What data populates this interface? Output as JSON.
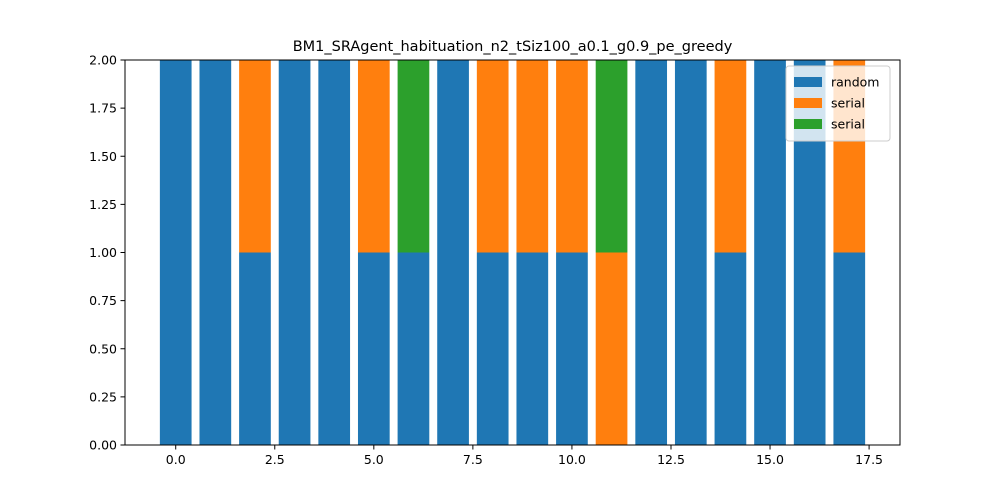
{
  "chart_data": {
    "type": "bar",
    "stacked": true,
    "title": "BM1_SRAgent_habituation_n2_tSiz100_a0.1_g0.9_pe_greedy",
    "xlabel": "",
    "ylabel": "",
    "x": [
      0,
      1,
      2,
      3,
      4,
      5,
      6,
      7,
      8,
      9,
      10,
      11,
      12,
      13,
      14,
      15,
      16,
      17
    ],
    "xlim": [
      -1.28,
      18.28
    ],
    "ylim": [
      0,
      2
    ],
    "xticks": [
      "0.0",
      "2.5",
      "5.0",
      "7.5",
      "10.0",
      "12.5",
      "15.0",
      "17.5"
    ],
    "xtick_values": [
      0,
      2.5,
      5,
      7.5,
      10,
      12.5,
      15,
      17.5
    ],
    "yticks": [
      "0.00",
      "0.25",
      "0.50",
      "0.75",
      "1.00",
      "1.25",
      "1.50",
      "1.75",
      "2.00"
    ],
    "ytick_values": [
      0,
      0.25,
      0.5,
      0.75,
      1,
      1.25,
      1.5,
      1.75,
      2
    ],
    "grid": false,
    "legend_position": "top-right",
    "bars": [
      {
        "x": 0,
        "segments": [
          {
            "series": 0,
            "value": 2
          }
        ]
      },
      {
        "x": 1,
        "segments": [
          {
            "series": 0,
            "value": 2
          }
        ]
      },
      {
        "x": 2,
        "segments": [
          {
            "series": 0,
            "value": 1
          },
          {
            "series": 1,
            "value": 1
          }
        ]
      },
      {
        "x": 3,
        "segments": [
          {
            "series": 0,
            "value": 2
          }
        ]
      },
      {
        "x": 4,
        "segments": [
          {
            "series": 0,
            "value": 2
          }
        ]
      },
      {
        "x": 5,
        "segments": [
          {
            "series": 0,
            "value": 1
          },
          {
            "series": 1,
            "value": 1
          }
        ]
      },
      {
        "x": 6,
        "segments": [
          {
            "series": 0,
            "value": 1
          },
          {
            "series": 2,
            "value": 1
          }
        ]
      },
      {
        "x": 7,
        "segments": [
          {
            "series": 0,
            "value": 2
          }
        ]
      },
      {
        "x": 8,
        "segments": [
          {
            "series": 0,
            "value": 1
          },
          {
            "series": 1,
            "value": 1
          }
        ]
      },
      {
        "x": 9,
        "segments": [
          {
            "series": 0,
            "value": 1
          },
          {
            "series": 1,
            "value": 1
          }
        ]
      },
      {
        "x": 10,
        "segments": [
          {
            "series": 0,
            "value": 1
          },
          {
            "series": 1,
            "value": 1
          }
        ]
      },
      {
        "x": 11,
        "segments": [
          {
            "series": 1,
            "value": 1
          },
          {
            "series": 2,
            "value": 1
          }
        ]
      },
      {
        "x": 12,
        "segments": [
          {
            "series": 0,
            "value": 2
          }
        ]
      },
      {
        "x": 13,
        "segments": [
          {
            "series": 0,
            "value": 2
          }
        ]
      },
      {
        "x": 14,
        "segments": [
          {
            "series": 0,
            "value": 1
          },
          {
            "series": 1,
            "value": 1
          }
        ]
      },
      {
        "x": 15,
        "segments": [
          {
            "series": 0,
            "value": 2
          }
        ]
      },
      {
        "x": 16,
        "segments": [
          {
            "series": 0,
            "value": 2
          }
        ]
      },
      {
        "x": 17,
        "segments": [
          {
            "series": 0,
            "value": 1
          },
          {
            "series": 1,
            "value": 1
          }
        ]
      }
    ],
    "series": [
      {
        "name": "random",
        "color": "#1f77b4"
      },
      {
        "name": "serial",
        "color": "#ff7f0e"
      },
      {
        "name": "serial",
        "color": "#2ca02c"
      }
    ]
  }
}
